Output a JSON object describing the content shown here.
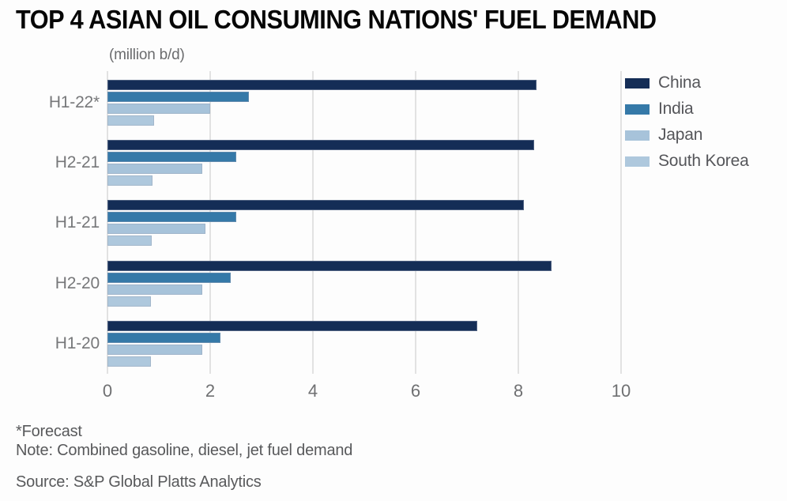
{
  "title": "TOP 4 ASIAN OIL CONSUMING NATIONS' FUEL DEMAND",
  "units_label": "(million b/d)",
  "footer": {
    "forecast_note": "*Forecast",
    "note": "Note: Combined gasoline, diesel, jet fuel demand",
    "source": "Source: S&P Global Platts Analytics"
  },
  "colors": {
    "background": "#fdfdfd",
    "title_text": "#060606",
    "muted_text": "#6f7072",
    "gridline": "#e2e2e2",
    "china": "#142d56",
    "india": "#3579a8",
    "japan": "#a7c3da",
    "south_korea": "#aec8dd"
  },
  "chart_data": {
    "type": "bar",
    "orientation": "horizontal",
    "title": "TOP 4 ASIAN OIL CONSUMING NATIONS' FUEL DEMAND",
    "xlabel": "(million b/d)",
    "ylabel": "",
    "categories": [
      "H1-22*",
      "H2-21",
      "H1-21",
      "H2-20",
      "H1-20"
    ],
    "series": [
      {
        "name": "China",
        "color": "#142d56",
        "values": [
          8.35,
          8.3,
          8.1,
          8.65,
          7.2
        ]
      },
      {
        "name": "India",
        "color": "#3579a8",
        "values": [
          2.75,
          2.5,
          2.5,
          2.4,
          2.2
        ]
      },
      {
        "name": "Japan",
        "color": "#a7c3da",
        "values": [
          2.0,
          1.85,
          1.9,
          1.85,
          1.85
        ]
      },
      {
        "name": "South Korea",
        "color": "#aec8dd",
        "values": [
          0.9,
          0.87,
          0.86,
          0.85,
          0.84
        ]
      }
    ],
    "xlim": [
      0,
      10
    ],
    "xticks": [
      0,
      2,
      4,
      6,
      8,
      10
    ],
    "grid": "vertical",
    "legend_position": "right"
  }
}
